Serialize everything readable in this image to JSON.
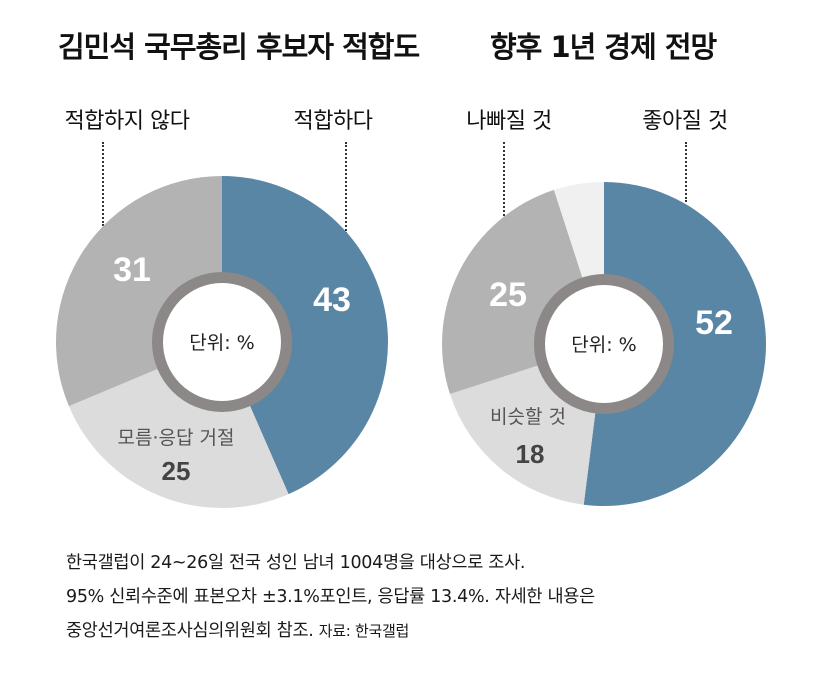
{
  "charts": {
    "left": {
      "title": "김민석 국무총리 후보자 적합도",
      "top_labels": {
        "left": "적합하지 않다",
        "right": "적합하다"
      },
      "center_label": "단위: %"
    },
    "right": {
      "title": "향후 1년 경제 전망",
      "top_labels": {
        "left": "나빠질 것",
        "right": "좋아질 것"
      },
      "center_label": "단위: %"
    }
  },
  "chart_data": [
    {
      "type": "pie",
      "title": "김민석 국무총리 후보자 적합도",
      "unit": "%",
      "series": [
        {
          "name": "적합하다",
          "value": 43,
          "value_label": "43",
          "color": "#5a86a5"
        },
        {
          "name": "모름·응답 거절",
          "value": 25,
          "value_label": "25",
          "color": "#dcdcdc"
        },
        {
          "name": "적합하지 않다",
          "value": 31,
          "value_label": "31",
          "color": "#b3b3b3"
        }
      ]
    },
    {
      "type": "pie",
      "title": "향후 1년 경제 전망",
      "unit": "%",
      "series": [
        {
          "name": "좋아질 것",
          "value": 52,
          "value_label": "52",
          "color": "#5a86a5"
        },
        {
          "name": "비슷할 것",
          "value": 18,
          "value_label": "18",
          "color": "#dcdcdc"
        },
        {
          "name": "나빠질 것",
          "value": 25,
          "value_label": "25",
          "color": "#b3b3b3"
        },
        {
          "name": "",
          "value": 5,
          "value_label": "",
          "color": "#f0f0f0"
        }
      ]
    }
  ],
  "footnote": {
    "line1": "한국갤럽이 24~26일 전국 성인 남녀 1004명을 대상으로 조사.",
    "line2": "95% 신뢰수준에 표본오차 ±3.1%포인트, 응답률 13.4%. 자세한 내용은",
    "line3": "중앙선거여론조사심의위원회 참조.",
    "source": "자료: 한국갤럽"
  }
}
